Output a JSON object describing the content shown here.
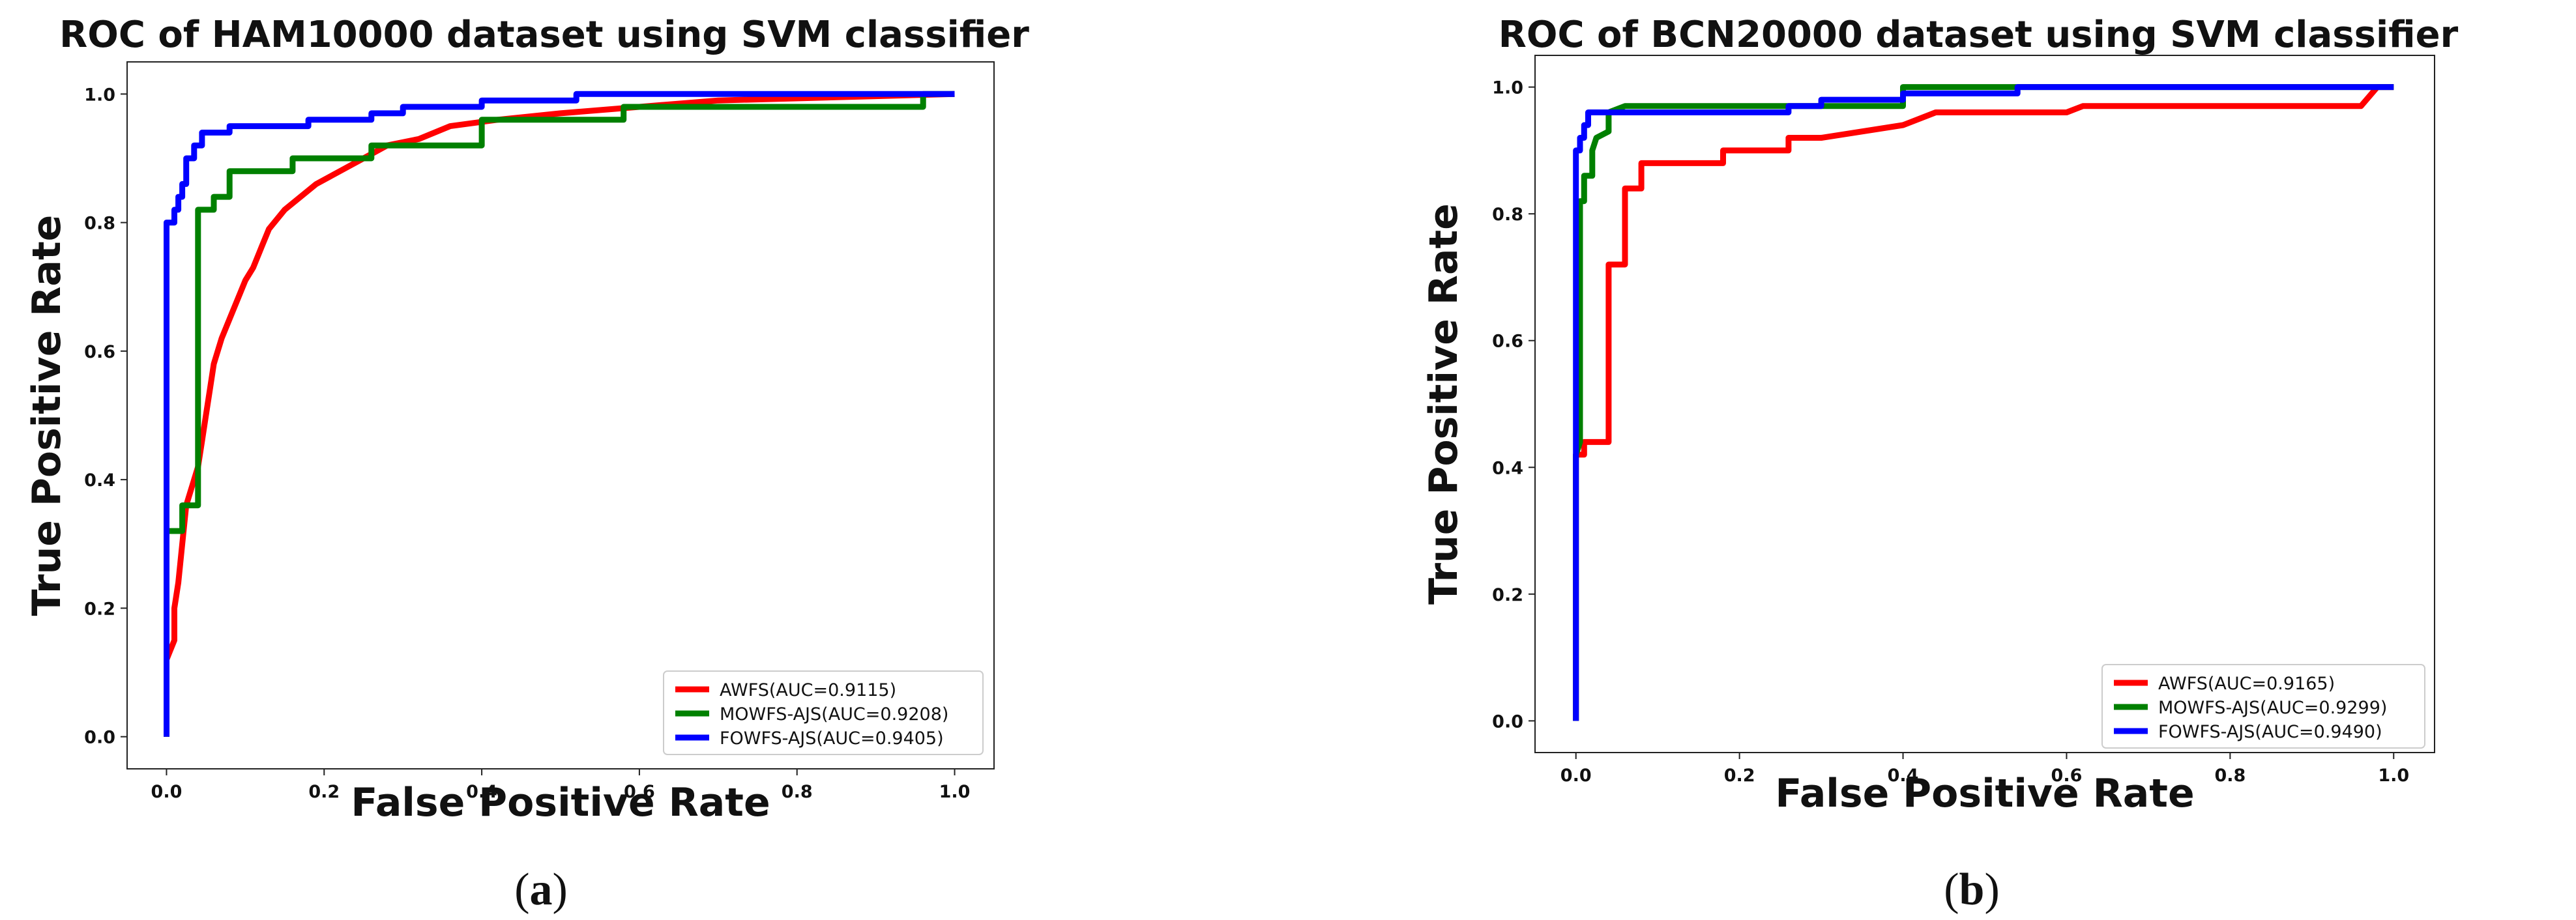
{
  "chart_data": [
    {
      "type": "line",
      "title": "ROC of HAM10000 dataset using SVM classifier",
      "xlabel": "False Positive Rate",
      "ylabel": "True Positive Rate",
      "xlim": [
        -0.05,
        1.05
      ],
      "ylim": [
        -0.05,
        1.05
      ],
      "xticks": [
        "0.0",
        "0.2",
        "0.4",
        "0.6",
        "0.8",
        "1.0"
      ],
      "yticks": [
        "0.0",
        "0.2",
        "0.4",
        "0.6",
        "0.8",
        "1.0"
      ],
      "grid": false,
      "legend_position": "lower-right",
      "caption_letter": "a",
      "series": [
        {
          "name": "AWFS(AUC=0.9115)",
          "color": "#ff0000",
          "points": [
            [
              0.0,
              0.0
            ],
            [
              0.0,
              0.12
            ],
            [
              0.01,
              0.15
            ],
            [
              0.01,
              0.2
            ],
            [
              0.015,
              0.24
            ],
            [
              0.02,
              0.3
            ],
            [
              0.025,
              0.36
            ],
            [
              0.03,
              0.38
            ],
            [
              0.035,
              0.4
            ],
            [
              0.04,
              0.42
            ],
            [
              0.045,
              0.46
            ],
            [
              0.05,
              0.5
            ],
            [
              0.055,
              0.54
            ],
            [
              0.06,
              0.58
            ],
            [
              0.07,
              0.62
            ],
            [
              0.08,
              0.65
            ],
            [
              0.09,
              0.68
            ],
            [
              0.1,
              0.71
            ],
            [
              0.11,
              0.73
            ],
            [
              0.12,
              0.76
            ],
            [
              0.13,
              0.79
            ],
            [
              0.15,
              0.82
            ],
            [
              0.17,
              0.84
            ],
            [
              0.19,
              0.86
            ],
            [
              0.22,
              0.88
            ],
            [
              0.25,
              0.9
            ],
            [
              0.28,
              0.92
            ],
            [
              0.32,
              0.93
            ],
            [
              0.36,
              0.95
            ],
            [
              0.42,
              0.96
            ],
            [
              0.5,
              0.97
            ],
            [
              0.6,
              0.98
            ],
            [
              0.7,
              0.99
            ],
            [
              1.0,
              1.0
            ]
          ]
        },
        {
          "name": "MOWFS-AJS(AUC=0.9208)",
          "color": "#008000",
          "points": [
            [
              0.0,
              0.0
            ],
            [
              0.0,
              0.32
            ],
            [
              0.02,
              0.32
            ],
            [
              0.02,
              0.36
            ],
            [
              0.04,
              0.36
            ],
            [
              0.04,
              0.82
            ],
            [
              0.06,
              0.82
            ],
            [
              0.06,
              0.84
            ],
            [
              0.08,
              0.84
            ],
            [
              0.08,
              0.88
            ],
            [
              0.16,
              0.88
            ],
            [
              0.16,
              0.9
            ],
            [
              0.26,
              0.9
            ],
            [
              0.26,
              0.92
            ],
            [
              0.4,
              0.92
            ],
            [
              0.4,
              0.96
            ],
            [
              0.58,
              0.96
            ],
            [
              0.58,
              0.98
            ],
            [
              0.96,
              0.98
            ],
            [
              0.96,
              1.0
            ],
            [
              1.0,
              1.0
            ]
          ]
        },
        {
          "name": "FOWFS-AJS(AUC=0.9405)",
          "color": "#0000ff",
          "points": [
            [
              0.0,
              0.0
            ],
            [
              0.0,
              0.8
            ],
            [
              0.01,
              0.8
            ],
            [
              0.01,
              0.82
            ],
            [
              0.015,
              0.82
            ],
            [
              0.015,
              0.84
            ],
            [
              0.02,
              0.84
            ],
            [
              0.02,
              0.86
            ],
            [
              0.025,
              0.86
            ],
            [
              0.025,
              0.9
            ],
            [
              0.035,
              0.9
            ],
            [
              0.035,
              0.92
            ],
            [
              0.045,
              0.92
            ],
            [
              0.045,
              0.94
            ],
            [
              0.08,
              0.94
            ],
            [
              0.08,
              0.95
            ],
            [
              0.18,
              0.95
            ],
            [
              0.18,
              0.96
            ],
            [
              0.26,
              0.96
            ],
            [
              0.26,
              0.97
            ],
            [
              0.3,
              0.97
            ],
            [
              0.3,
              0.98
            ],
            [
              0.4,
              0.98
            ],
            [
              0.4,
              0.99
            ],
            [
              0.52,
              0.99
            ],
            [
              0.52,
              1.0
            ],
            [
              1.0,
              1.0
            ]
          ]
        }
      ]
    },
    {
      "type": "line",
      "title": "ROC of BCN20000 dataset using SVM classifier",
      "xlabel": "False Positive Rate",
      "ylabel": "True Positive Rate",
      "xlim": [
        -0.05,
        1.05
      ],
      "ylim": [
        -0.05,
        1.05
      ],
      "xticks": [
        "0.0",
        "0.2",
        "0.4",
        "0.6",
        "0.8",
        "1.0"
      ],
      "yticks": [
        "0.0",
        "0.2",
        "0.4",
        "0.6",
        "0.8",
        "1.0"
      ],
      "grid": false,
      "legend_position": "lower-right",
      "caption_letter": "b",
      "series": [
        {
          "name": "AWFS(AUC=0.9165)",
          "color": "#ff0000",
          "points": [
            [
              0.0,
              0.0
            ],
            [
              0.0,
              0.42
            ],
            [
              0.01,
              0.42
            ],
            [
              0.01,
              0.44
            ],
            [
              0.04,
              0.44
            ],
            [
              0.04,
              0.72
            ],
            [
              0.06,
              0.72
            ],
            [
              0.06,
              0.84
            ],
            [
              0.08,
              0.84
            ],
            [
              0.08,
              0.88
            ],
            [
              0.18,
              0.88
            ],
            [
              0.18,
              0.9
            ],
            [
              0.26,
              0.9
            ],
            [
              0.26,
              0.92
            ],
            [
              0.3,
              0.92
            ],
            [
              0.4,
              0.94
            ],
            [
              0.44,
              0.96
            ],
            [
              0.6,
              0.96
            ],
            [
              0.62,
              0.97
            ],
            [
              0.96,
              0.97
            ],
            [
              0.98,
              1.0
            ],
            [
              1.0,
              1.0
            ]
          ]
        },
        {
          "name": "MOWFS-AJS(AUC=0.9299)",
          "color": "#008000",
          "points": [
            [
              0.0,
              0.0
            ],
            [
              0.0,
              0.42
            ],
            [
              0.005,
              0.44
            ],
            [
              0.005,
              0.82
            ],
            [
              0.01,
              0.82
            ],
            [
              0.01,
              0.86
            ],
            [
              0.02,
              0.86
            ],
            [
              0.02,
              0.9
            ],
            [
              0.025,
              0.92
            ],
            [
              0.04,
              0.93
            ],
            [
              0.04,
              0.96
            ],
            [
              0.06,
              0.97
            ],
            [
              0.4,
              0.97
            ],
            [
              0.4,
              1.0
            ],
            [
              1.0,
              1.0
            ]
          ]
        },
        {
          "name": "FOWFS-AJS(AUC=0.9490)",
          "color": "#0000ff",
          "points": [
            [
              0.0,
              0.0
            ],
            [
              0.0,
              0.9
            ],
            [
              0.005,
              0.9
            ],
            [
              0.005,
              0.92
            ],
            [
              0.01,
              0.92
            ],
            [
              0.01,
              0.94
            ],
            [
              0.015,
              0.94
            ],
            [
              0.015,
              0.96
            ],
            [
              0.26,
              0.96
            ],
            [
              0.26,
              0.97
            ],
            [
              0.3,
              0.97
            ],
            [
              0.3,
              0.98
            ],
            [
              0.4,
              0.98
            ],
            [
              0.4,
              0.99
            ],
            [
              0.54,
              0.99
            ],
            [
              0.54,
              1.0
            ],
            [
              1.0,
              1.0
            ]
          ]
        }
      ]
    }
  ]
}
